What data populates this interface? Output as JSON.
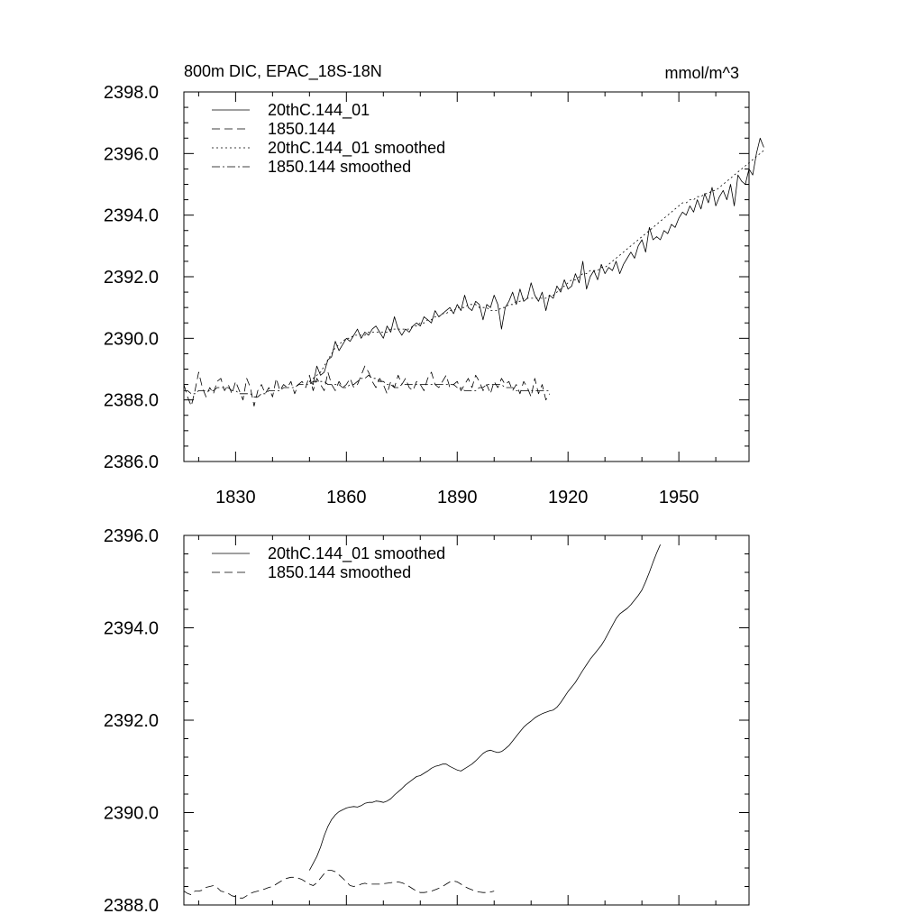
{
  "chart_data": [
    {
      "type": "line",
      "title": "800m DIC, EPAC_18S-18N",
      "units": "mmol/m^3",
      "xlabel": "",
      "ylabel": "",
      "xlim": [
        1816,
        1969
      ],
      "ylim": [
        2386.0,
        2398.0
      ],
      "xticks": [
        1830,
        1860,
        1890,
        1920,
        1950
      ],
      "yticks": [
        2386.0,
        2388.0,
        2390.0,
        2392.0,
        2394.0,
        2396.0,
        2398.0
      ],
      "ytick_labels": [
        "2386.0",
        "2388.0",
        "2390.0",
        "2392.0",
        "2394.0",
        "2396.0",
        "2398.0"
      ],
      "legend_position": "top-left",
      "series": [
        {
          "name": "20thC.144_01",
          "style": "solid",
          "x_start": 1850,
          "values": [
            2388.6,
            2388.5,
            2389.1,
            2388.8,
            2388.9,
            2389.3,
            2389.4,
            2389.9,
            2389.6,
            2389.8,
            2390.0,
            2389.9,
            2390.1,
            2390.3,
            2390.0,
            2390.2,
            2390.1,
            2390.3,
            2390.4,
            2390.2,
            2390.0,
            2390.4,
            2390.2,
            2390.7,
            2390.3,
            2390.1,
            2390.3,
            2390.2,
            2390.4,
            2390.5,
            2390.4,
            2390.7,
            2390.6,
            2390.5,
            2390.9,
            2390.7,
            2390.8,
            2390.9,
            2391.0,
            2390.8,
            2391.1,
            2390.9,
            2391.4,
            2391.0,
            2390.9,
            2391.2,
            2391.1,
            2390.6,
            2391.1,
            2391.0,
            2391.4,
            2391.1,
            2390.3,
            2391.0,
            2391.2,
            2391.5,
            2391.1,
            2391.6,
            2391.2,
            2391.3,
            2391.8,
            2391.4,
            2391.2,
            2391.5,
            2390.9,
            2391.4,
            2391.3,
            2391.7,
            2391.5,
            2391.9,
            2391.6,
            2391.7,
            2392.1,
            2391.8,
            2392.5,
            2391.6,
            2392.0,
            2392.2,
            2391.9,
            2392.4,
            2392.1,
            2392.3,
            2392.2,
            2392.5,
            2392.1,
            2392.4,
            2392.6,
            2392.8,
            2392.6,
            2393.0,
            2393.2,
            2392.8,
            2393.6,
            2393.2,
            2393.3,
            2393.2,
            2393.5,
            2393.4,
            2393.7,
            2393.6,
            2393.9,
            2394.1,
            2394.0,
            2394.3,
            2394.1,
            2394.5,
            2394.2,
            2394.7,
            2394.4,
            2394.9,
            2394.3,
            2394.6,
            2394.8,
            2394.5,
            2395.0,
            2394.3,
            2395.3,
            2395.1,
            2395.0,
            2395.5,
            2395.3,
            2396.0,
            2396.5,
            2396.2
          ]
        },
        {
          "name": "1850.144",
          "style": "dashed",
          "x_start": 1816,
          "values": [
            2388.5,
            2388.1,
            2387.8,
            2388.3,
            2388.9,
            2388.4,
            2388.1,
            2388.4,
            2388.2,
            2388.6,
            2388.7,
            2388.3,
            2388.5,
            2388.2,
            2388.6,
            2388.3,
            2388.0,
            2388.7,
            2388.4,
            2387.8,
            2388.3,
            2388.5,
            2388.2,
            2388.4,
            2388.1,
            2388.7,
            2388.3,
            2388.5,
            2388.4,
            2388.6,
            2388.2,
            2388.5,
            2388.6,
            2388.4,
            2388.8,
            2388.3,
            2388.7,
            2388.5,
            2388.3,
            2388.9,
            2388.5,
            2388.3,
            2388.6,
            2388.4,
            2388.5,
            2388.7,
            2388.4,
            2388.5,
            2388.8,
            2389.1,
            2388.9,
            2388.6,
            2388.4,
            2388.7,
            2388.5,
            2388.2,
            2388.6,
            2388.4,
            2388.8,
            2388.5,
            2388.7,
            2388.4,
            2388.3,
            2388.6,
            2388.5,
            2388.3,
            2388.7,
            2388.9,
            2388.5,
            2388.4,
            2388.6,
            2388.8,
            2388.4,
            2388.5,
            2388.6,
            2388.3,
            2388.5,
            2388.7,
            2388.4,
            2388.8,
            2388.6,
            2388.3,
            2388.5,
            2388.2,
            2388.6,
            2388.4,
            2388.7,
            2388.5,
            2388.6,
            2388.3,
            2388.5,
            2388.2,
            2388.6,
            2388.4,
            2388.1,
            2388.7,
            2388.2,
            2388.5,
            2388.0,
            2388.2
          ]
        },
        {
          "name": "20thC.144_01 smoothed",
          "style": "dotted",
          "x_start": 1850,
          "values": [
            2388.6,
            2388.7,
            2388.8,
            2388.9,
            2389.1,
            2389.3,
            2389.5,
            2389.7,
            2389.8,
            2389.9,
            2390.0,
            2390.0,
            2390.1,
            2390.1,
            2390.1,
            2390.1,
            2390.2,
            2390.2,
            2390.2,
            2390.2,
            2390.2,
            2390.2,
            2390.3,
            2390.3,
            2390.3,
            2390.3,
            2390.3,
            2390.3,
            2390.4,
            2390.4,
            2390.5,
            2390.5,
            2390.6,
            2390.6,
            2390.7,
            2390.7,
            2390.8,
            2390.8,
            2390.9,
            2390.9,
            2391.0,
            2391.0,
            2391.0,
            2391.1,
            2391.1,
            2391.1,
            2391.0,
            2391.0,
            2391.0,
            2390.9,
            2390.9,
            2390.9,
            2391.0,
            2391.0,
            2391.1,
            2391.1,
            2391.2,
            2391.2,
            2391.3,
            2391.3,
            2391.3,
            2391.3,
            2391.3,
            2391.3,
            2391.3,
            2391.4,
            2391.4,
            2391.5,
            2391.6,
            2391.7,
            2391.8,
            2391.9,
            2391.9,
            2392.0,
            2392.1,
            2392.1,
            2392.2,
            2392.2,
            2392.2,
            2392.3,
            2392.3,
            2392.4,
            2392.5,
            2392.6,
            2392.7,
            2392.8,
            2392.9,
            2393.0,
            2393.1,
            2393.2,
            2393.3,
            2393.4,
            2393.5,
            2393.6,
            2393.7,
            2393.8,
            2393.9,
            2394.0,
            2394.1,
            2394.2,
            2394.3,
            2394.4,
            2394.4,
            2394.5,
            2394.5,
            2394.6,
            2394.6,
            2394.7,
            2394.7,
            2394.8,
            2394.8,
            2394.9,
            2395.0,
            2395.1,
            2395.2,
            2395.3,
            2395.4,
            2395.5,
            2395.6,
            2395.7,
            2395.8,
            2395.9,
            2396.0,
            2396.1
          ]
        },
        {
          "name": "1850.144 smoothed",
          "style": "dashdot",
          "x_start": 1816,
          "values": [
            2388.3,
            2388.3,
            2388.2,
            2388.2,
            2388.3,
            2388.3,
            2388.3,
            2388.3,
            2388.3,
            2388.4,
            2388.4,
            2388.4,
            2388.4,
            2388.3,
            2388.3,
            2388.2,
            2388.2,
            2388.2,
            2388.2,
            2388.1,
            2388.1,
            2388.2,
            2388.2,
            2388.3,
            2388.3,
            2388.3,
            2388.3,
            2388.4,
            2388.4,
            2388.4,
            2388.4,
            2388.5,
            2388.5,
            2388.5,
            2388.5,
            2388.6,
            2388.6,
            2388.6,
            2388.6,
            2388.5,
            2388.5,
            2388.5,
            2388.5,
            2388.4,
            2388.4,
            2388.5,
            2388.5,
            2388.6,
            2388.7,
            2388.7,
            2388.8,
            2388.7,
            2388.7,
            2388.6,
            2388.6,
            2388.5,
            2388.5,
            2388.4,
            2388.4,
            2388.5,
            2388.5,
            2388.5,
            2388.5,
            2388.5,
            2388.5,
            2388.5,
            2388.5,
            2388.5,
            2388.5,
            2388.5,
            2388.5,
            2388.5,
            2388.5,
            2388.5,
            2388.4,
            2388.4,
            2388.3,
            2388.3,
            2388.3,
            2388.3,
            2388.4,
            2388.4,
            2388.5,
            2388.5,
            2388.5,
            2388.5,
            2388.5,
            2388.4,
            2388.4,
            2388.4,
            2388.3,
            2388.3,
            2388.3,
            2388.3,
            2388.3,
            2388.3,
            2388.3,
            2388.3,
            2388.3,
            2388.3
          ]
        }
      ]
    },
    {
      "type": "line",
      "title": "",
      "xlabel": "",
      "ylabel": "",
      "xlim": [
        1816,
        1969
      ],
      "ylim": [
        2388.0,
        2396.0
      ],
      "xticks": [
        1830,
        1860,
        1890,
        1920,
        1950
      ],
      "yticks": [
        2388.0,
        2390.0,
        2392.0,
        2394.0,
        2396.0
      ],
      "ytick_labels": [
        "2388.0",
        "2390.0",
        "2392.0",
        "2394.0",
        "2396.0"
      ],
      "legend_position": "top-left",
      "series": [
        {
          "name": "20thC.144_01 smoothed",
          "style": "solid",
          "x_start": 1850,
          "values": [
            2388.75,
            2388.9,
            2389.05,
            2389.25,
            2389.5,
            2389.7,
            2389.85,
            2389.95,
            2390.02,
            2390.06,
            2390.1,
            2390.12,
            2390.13,
            2390.12,
            2390.15,
            2390.2,
            2390.22,
            2390.22,
            2390.25,
            2390.24,
            2390.22,
            2390.25,
            2390.3,
            2390.38,
            2390.45,
            2390.52,
            2390.6,
            2390.66,
            2390.72,
            2390.78,
            2390.8,
            2390.85,
            2390.9,
            2390.96,
            2391.0,
            2391.02,
            2391.05,
            2391.05,
            2391.0,
            2390.96,
            2390.92,
            2390.9,
            2390.95,
            2391.0,
            2391.05,
            2391.12,
            2391.2,
            2391.28,
            2391.33,
            2391.35,
            2391.32,
            2391.3,
            2391.32,
            2391.38,
            2391.45,
            2391.55,
            2391.65,
            2391.75,
            2391.85,
            2391.92,
            2391.98,
            2392.05,
            2392.1,
            2392.14,
            2392.17,
            2392.2,
            2392.22,
            2392.28,
            2392.38,
            2392.5,
            2392.62,
            2392.72,
            2392.82,
            2392.95,
            2393.08,
            2393.2,
            2393.32,
            2393.42,
            2393.52,
            2393.62,
            2393.75,
            2393.9,
            2394.05,
            2394.2,
            2394.3,
            2394.36,
            2394.42,
            2394.5,
            2394.6,
            2394.7,
            2394.82,
            2395.0,
            2395.2,
            2395.42,
            2395.62,
            2395.8
          ]
        },
        {
          "name": "1850.144 smoothed",
          "style": "dashed",
          "x_start": 1816,
          "values": [
            2388.3,
            2388.25,
            2388.22,
            2388.3,
            2388.3,
            2388.32,
            2388.38,
            2388.4,
            2388.42,
            2388.38,
            2388.3,
            2388.28,
            2388.25,
            2388.2,
            2388.18,
            2388.15,
            2388.15,
            2388.2,
            2388.25,
            2388.28,
            2388.3,
            2388.32,
            2388.35,
            2388.38,
            2388.4,
            2388.45,
            2388.5,
            2388.55,
            2388.58,
            2388.6,
            2388.6,
            2388.58,
            2388.55,
            2388.5,
            2388.45,
            2388.42,
            2388.48,
            2388.58,
            2388.68,
            2388.75,
            2388.75,
            2388.72,
            2388.65,
            2388.58,
            2388.5,
            2388.42,
            2388.4,
            2388.42,
            2388.45,
            2388.47,
            2388.45,
            2388.45,
            2388.45,
            2388.45,
            2388.46,
            2388.47,
            2388.48,
            2388.5,
            2388.5,
            2388.48,
            2388.45,
            2388.4,
            2388.35,
            2388.3,
            2388.27,
            2388.27,
            2388.28,
            2388.3,
            2388.33,
            2388.36,
            2388.4,
            2388.45,
            2388.5,
            2388.52,
            2388.5,
            2388.45,
            2388.4,
            2388.36,
            2388.33,
            2388.3,
            2388.28,
            2388.27,
            2388.27,
            2388.28,
            2388.3
          ]
        }
      ]
    }
  ]
}
